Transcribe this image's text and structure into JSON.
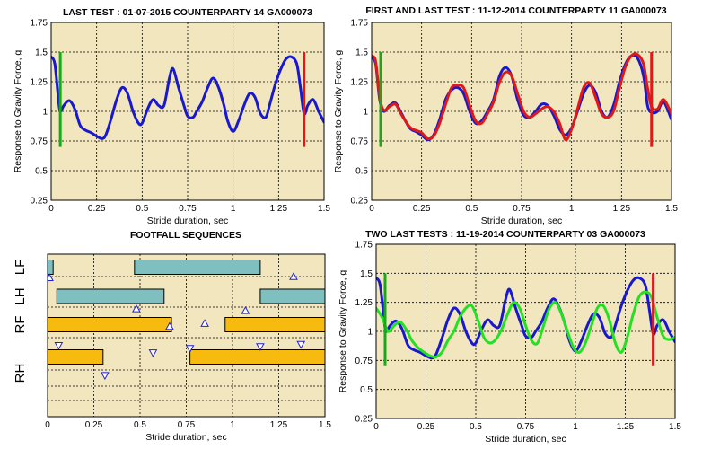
{
  "colors": {
    "panel_bg": "#f2e6be",
    "grid": "#000000",
    "blue": "#1818d0",
    "red": "#e01818",
    "green": "#18a818",
    "bright_green": "#22e022",
    "fore_bar": "#7fbfbf",
    "hind_bar": "#f7bb10",
    "triangle": "#2020d0"
  },
  "chart_data": [
    {
      "id": "p1",
      "type": "line",
      "title": "LAST TEST : 01-07-2015 COUNTERPARTY 14 GA000073",
      "xlabel": "Stride duration, sec",
      "ylabel": "Response to Gravity Force, g",
      "xlim": [
        0,
        1.5
      ],
      "ylim": [
        0.25,
        1.75
      ],
      "xticks": [
        "0",
        "0.25",
        "0.5",
        "0.75",
        "1",
        "1.25",
        "1.5"
      ],
      "yticks": [
        "0.25",
        "0.5",
        "0.75",
        "1",
        "1.25",
        "1.5",
        "1.75"
      ],
      "grid": true,
      "markers": [
        {
          "x": 0.05,
          "from": 0.7,
          "to": 1.5,
          "color": "green"
        },
        {
          "x": 1.39,
          "from": 0.7,
          "to": 1.5,
          "color": "red"
        }
      ],
      "series": [
        {
          "color": "blue",
          "x": [
            0,
            0.02,
            0.04,
            0.05,
            0.07,
            0.1,
            0.13,
            0.16,
            0.19,
            0.22,
            0.25,
            0.28,
            0.3,
            0.33,
            0.36,
            0.39,
            0.42,
            0.45,
            0.48,
            0.5,
            0.53,
            0.56,
            0.59,
            0.62,
            0.65,
            0.67,
            0.7,
            0.73,
            0.75,
            0.78,
            0.8,
            0.83,
            0.86,
            0.89,
            0.92,
            0.95,
            0.97,
            1.0,
            1.03,
            1.06,
            1.09,
            1.12,
            1.15,
            1.18,
            1.2,
            1.23,
            1.26,
            1.29,
            1.32,
            1.35,
            1.37,
            1.39,
            1.41,
            1.44,
            1.47,
            1.5
          ],
          "y": [
            1.46,
            1.4,
            1.1,
            1.0,
            1.05,
            1.09,
            1.02,
            0.88,
            0.84,
            0.82,
            0.79,
            0.77,
            0.8,
            0.94,
            1.1,
            1.2,
            1.15,
            1.0,
            0.9,
            0.9,
            1.02,
            1.1,
            1.05,
            1.05,
            1.28,
            1.36,
            1.2,
            1.05,
            0.96,
            0.95,
            1.0,
            1.08,
            1.2,
            1.28,
            1.2,
            1.05,
            0.92,
            0.83,
            0.92,
            1.05,
            1.15,
            1.12,
            0.98,
            0.95,
            1.05,
            1.22,
            1.35,
            1.44,
            1.46,
            1.4,
            1.2,
            0.98,
            1.05,
            1.1,
            1.0,
            0.91
          ]
        }
      ]
    },
    {
      "id": "p2",
      "type": "line",
      "title": "FIRST AND LAST TEST : 11-12-2014 COUNTERPARTY 11 GA000073",
      "xlabel": "Stride duration, sec",
      "ylabel": "Response to Gravity Force, g",
      "xlim": [
        0,
        1.5
      ],
      "ylim": [
        0.25,
        1.75
      ],
      "xticks": [
        "0",
        "0.25",
        "0.5",
        "0.75",
        "1",
        "1.25",
        "1.5"
      ],
      "yticks": [
        "0.25",
        "0.5",
        "0.75",
        "1",
        "1.25",
        "1.5",
        "1.75"
      ],
      "grid": true,
      "markers": [
        {
          "x": 0.045,
          "from": 0.7,
          "to": 1.5,
          "color": "green"
        },
        {
          "x": 1.4,
          "from": 0.7,
          "to": 1.5,
          "color": "red"
        }
      ],
      "series": [
        {
          "color": "blue",
          "x": [
            0,
            0.02,
            0.04,
            0.06,
            0.09,
            0.12,
            0.15,
            0.19,
            0.22,
            0.25,
            0.28,
            0.31,
            0.34,
            0.37,
            0.4,
            0.43,
            0.46,
            0.49,
            0.52,
            0.55,
            0.58,
            0.61,
            0.64,
            0.67,
            0.7,
            0.73,
            0.76,
            0.79,
            0.82,
            0.85,
            0.88,
            0.91,
            0.94,
            0.97,
            1.0,
            1.03,
            1.06,
            1.09,
            1.12,
            1.15,
            1.18,
            1.21,
            1.24,
            1.27,
            1.3,
            1.33,
            1.36,
            1.38,
            1.4,
            1.43,
            1.46,
            1.5
          ],
          "y": [
            1.45,
            1.4,
            1.1,
            1.0,
            1.05,
            1.07,
            0.98,
            0.86,
            0.83,
            0.8,
            0.76,
            0.8,
            0.93,
            1.1,
            1.18,
            1.2,
            1.15,
            1.0,
            0.9,
            0.92,
            1.0,
            1.1,
            1.3,
            1.37,
            1.3,
            1.1,
            0.97,
            0.95,
            1.0,
            1.06,
            1.05,
            0.97,
            0.85,
            0.8,
            0.86,
            1.0,
            1.15,
            1.22,
            1.16,
            1.0,
            0.95,
            1.05,
            1.25,
            1.4,
            1.47,
            1.45,
            1.3,
            1.05,
            0.99,
            1.0,
            1.08,
            0.93
          ]
        },
        {
          "color": "red",
          "x": [
            0,
            0.02,
            0.04,
            0.06,
            0.09,
            0.12,
            0.15,
            0.19,
            0.22,
            0.25,
            0.28,
            0.31,
            0.34,
            0.37,
            0.4,
            0.43,
            0.46,
            0.49,
            0.52,
            0.55,
            0.58,
            0.61,
            0.64,
            0.67,
            0.7,
            0.73,
            0.76,
            0.79,
            0.82,
            0.85,
            0.88,
            0.91,
            0.94,
            0.97,
            1.0,
            1.03,
            1.06,
            1.09,
            1.12,
            1.15,
            1.18,
            1.21,
            1.24,
            1.27,
            1.3,
            1.33,
            1.36,
            1.38,
            1.4,
            1.43,
            1.46,
            1.5
          ],
          "y": [
            1.47,
            1.42,
            1.12,
            1.01,
            1.04,
            1.06,
            0.97,
            0.87,
            0.84,
            0.82,
            0.77,
            0.79,
            0.9,
            1.06,
            1.2,
            1.22,
            1.2,
            1.05,
            0.92,
            0.9,
            0.98,
            1.08,
            1.25,
            1.33,
            1.3,
            1.15,
            1.0,
            0.95,
            0.98,
            1.02,
            1.04,
            1.0,
            0.9,
            0.76,
            0.85,
            1.02,
            1.2,
            1.24,
            1.12,
            0.98,
            0.95,
            1.0,
            1.2,
            1.38,
            1.47,
            1.48,
            1.4,
            1.2,
            1.04,
            1.02,
            1.1,
            0.98
          ]
        }
      ]
    },
    {
      "id": "p3",
      "type": "bar",
      "title": "FOOTFALL SEQUENCES",
      "xlabel": "Stride duration, sec",
      "xlim": [
        0,
        1.5
      ],
      "xticks": [
        "0",
        "0.25",
        "0.5",
        "0.75",
        "1",
        "1.25",
        "1.5"
      ],
      "rows": [
        "LF",
        "LH",
        "RF",
        "RH"
      ],
      "grid": true,
      "bars": [
        {
          "row": 0,
          "color": "fore_bar",
          "start": 0.0,
          "end": 0.03
        },
        {
          "row": 0,
          "color": "fore_bar",
          "start": 0.47,
          "end": 1.15
        },
        {
          "row": 1,
          "color": "fore_bar",
          "start": 0.05,
          "end": 0.63
        },
        {
          "row": 1,
          "color": "fore_bar",
          "start": 1.15,
          "end": 1.5
        },
        {
          "row": 2,
          "color": "hind_bar",
          "start": 0.0,
          "end": 0.67
        },
        {
          "row": 2,
          "color": "hind_bar",
          "start": 0.96,
          "end": 1.5
        },
        {
          "row": 3,
          "color": "hind_bar",
          "start": 0.0,
          "end": 0.3
        },
        {
          "row": 3,
          "color": "hind_bar",
          "start": 0.77,
          "end": 1.5
        }
      ],
      "triangles": [
        {
          "x": 0.01,
          "y": 0.45,
          "dir": "up"
        },
        {
          "x": 0.66,
          "y": 1.78,
          "dir": "up"
        },
        {
          "x": 1.33,
          "y": 0.42,
          "dir": "up"
        },
        {
          "x": 0.48,
          "y": 1.3,
          "dir": "up"
        },
        {
          "x": 1.07,
          "y": 1.35,
          "dir": "up"
        },
        {
          "x": 0.85,
          "y": 1.7,
          "dir": "up"
        },
        {
          "x": 0.06,
          "y": 2.3,
          "dir": "down"
        },
        {
          "x": 0.57,
          "y": 2.5,
          "dir": "down"
        },
        {
          "x": 0.77,
          "y": 2.38,
          "dir": "down"
        },
        {
          "x": 1.15,
          "y": 2.33,
          "dir": "down"
        },
        {
          "x": 1.37,
          "y": 2.27,
          "dir": "down"
        },
        {
          "x": 0.31,
          "y": 3.12,
          "dir": "down"
        }
      ]
    },
    {
      "id": "p4",
      "type": "line",
      "title": "TWO LAST TESTS : 11-19-2014 COUNTERPARTY 03 GA000073",
      "xlabel": "Stride duration, sec",
      "ylabel": "Response to Gravity Force, g",
      "xlim": [
        0,
        1.5
      ],
      "ylim": [
        0.25,
        1.75
      ],
      "xticks": [
        "0",
        "0.25",
        "0.5",
        "0.75",
        "1",
        "1.25",
        "1.5"
      ],
      "yticks": [
        "0.25",
        "0.5",
        "0.75",
        "1",
        "1.25",
        "1.5",
        "1.75"
      ],
      "grid": true,
      "markers": [
        {
          "x": 0.045,
          "from": 0.7,
          "to": 1.5,
          "color": "green"
        },
        {
          "x": 1.39,
          "from": 0.7,
          "to": 1.5,
          "color": "red"
        }
      ],
      "series": [
        {
          "color": "blue",
          "x": [
            0,
            0.02,
            0.04,
            0.05,
            0.07,
            0.1,
            0.13,
            0.16,
            0.19,
            0.22,
            0.25,
            0.28,
            0.3,
            0.33,
            0.36,
            0.39,
            0.42,
            0.45,
            0.48,
            0.5,
            0.53,
            0.56,
            0.59,
            0.62,
            0.65,
            0.67,
            0.7,
            0.73,
            0.75,
            0.78,
            0.8,
            0.83,
            0.86,
            0.89,
            0.92,
            0.95,
            0.97,
            1.0,
            1.03,
            1.06,
            1.09,
            1.12,
            1.15,
            1.18,
            1.2,
            1.23,
            1.26,
            1.29,
            1.32,
            1.35,
            1.37,
            1.39,
            1.41,
            1.44,
            1.47,
            1.5
          ],
          "y": [
            1.46,
            1.4,
            1.1,
            1.0,
            1.05,
            1.09,
            1.02,
            0.88,
            0.84,
            0.82,
            0.79,
            0.77,
            0.8,
            0.94,
            1.1,
            1.2,
            1.15,
            1.0,
            0.9,
            0.9,
            1.02,
            1.1,
            1.05,
            1.05,
            1.28,
            1.36,
            1.2,
            1.05,
            0.96,
            0.95,
            1.0,
            1.08,
            1.2,
            1.28,
            1.2,
            1.05,
            0.92,
            0.83,
            0.92,
            1.05,
            1.15,
            1.12,
            0.98,
            0.95,
            1.05,
            1.22,
            1.35,
            1.44,
            1.46,
            1.4,
            1.2,
            0.98,
            1.05,
            1.1,
            1.0,
            0.91
          ]
        },
        {
          "color": "bright_green",
          "x": [
            0,
            0.03,
            0.06,
            0.09,
            0.12,
            0.15,
            0.18,
            0.21,
            0.24,
            0.27,
            0.3,
            0.33,
            0.36,
            0.39,
            0.42,
            0.45,
            0.48,
            0.51,
            0.54,
            0.57,
            0.6,
            0.63,
            0.66,
            0.69,
            0.72,
            0.75,
            0.78,
            0.81,
            0.84,
            0.87,
            0.9,
            0.93,
            0.96,
            0.99,
            1.02,
            1.05,
            1.08,
            1.11,
            1.14,
            1.17,
            1.2,
            1.23,
            1.26,
            1.29,
            1.32,
            1.35,
            1.38,
            1.41,
            1.44,
            1.47,
            1.5
          ],
          "y": [
            1.2,
            1.12,
            1.0,
            1.05,
            1.08,
            1.02,
            0.92,
            0.86,
            0.82,
            0.79,
            0.78,
            0.82,
            0.92,
            1.0,
            1.12,
            1.2,
            1.22,
            1.1,
            0.95,
            0.9,
            0.93,
            1.02,
            1.15,
            1.25,
            1.2,
            1.05,
            0.92,
            0.9,
            1.05,
            1.2,
            1.25,
            1.15,
            1.0,
            0.86,
            0.82,
            0.9,
            1.05,
            1.2,
            1.22,
            1.1,
            0.9,
            0.82,
            0.95,
            1.15,
            1.3,
            1.34,
            1.3,
            1.12,
            0.96,
            0.93,
            0.95
          ]
        }
      ]
    }
  ]
}
